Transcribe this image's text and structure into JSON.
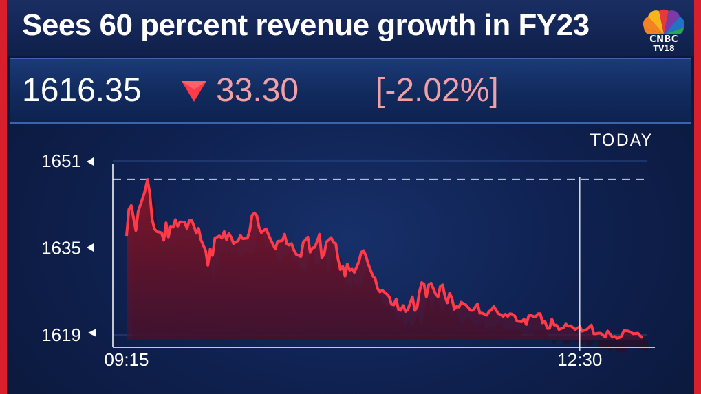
{
  "headline": "Sees 60 percent revenue growth in FY23",
  "logo": {
    "brand": "CNBC",
    "sub": "TV18",
    "icon": "peacock-icon"
  },
  "quote": {
    "price": "1616.35",
    "change": "33.30",
    "percent": "[-2.02%]",
    "direction_icon": "down-triangle-icon"
  },
  "period_label": "TODAY",
  "colors": {
    "accent_red": "#d8202c",
    "line": "#ff3b4a",
    "change_text": "#f2a0a6",
    "background": "#0f2150"
  },
  "chart_data": {
    "type": "area",
    "title": "",
    "xlabel": "",
    "ylabel": "",
    "ylim": [
      1618,
      1651
    ],
    "y_ticks": [
      1651,
      1635,
      1619
    ],
    "x_ticks": [
      {
        "label": "09:15",
        "minutes": 0
      },
      {
        "label": "12:30",
        "minutes": 195
      }
    ],
    "x_range_minutes": [
      0,
      222
    ],
    "reference_line": 1647.6,
    "cursor_minutes": 195,
    "grid": "horizontal",
    "series": [
      {
        "values": [
          [
            0,
            1637.2
          ],
          [
            1,
            1642.1
          ],
          [
            2,
            1642.8
          ],
          [
            3,
            1640.5
          ],
          [
            4,
            1638.2
          ],
          [
            5,
            1641.7
          ],
          [
            6,
            1643.0
          ],
          [
            7,
            1644.2
          ],
          [
            8,
            1645.6
          ],
          [
            9,
            1647.6
          ],
          [
            10,
            1645.0
          ],
          [
            11,
            1640.2
          ],
          [
            12,
            1638.5
          ],
          [
            13,
            1638.0
          ],
          [
            15,
            1637.8
          ],
          [
            16,
            1636.4
          ],
          [
            17,
            1639.6
          ],
          [
            18,
            1637.0
          ],
          [
            19,
            1639.0
          ],
          [
            20,
            1638.8
          ],
          [
            21,
            1640.2
          ],
          [
            22,
            1639.0
          ],
          [
            23,
            1639.8
          ],
          [
            25,
            1639.7
          ],
          [
            26,
            1638.6
          ],
          [
            27,
            1640.0
          ],
          [
            28,
            1640.1
          ],
          [
            29,
            1639.0
          ],
          [
            30,
            1637.7
          ],
          [
            31,
            1638.6
          ],
          [
            32,
            1636.5
          ],
          [
            34,
            1634.5
          ],
          [
            35,
            1631.8
          ],
          [
            36,
            1634.8
          ],
          [
            37,
            1633.6
          ],
          [
            38,
            1636.8
          ],
          [
            39,
            1637.0
          ],
          [
            40,
            1637.2
          ],
          [
            41,
            1636.8
          ],
          [
            42,
            1638.0
          ],
          [
            43,
            1636.5
          ],
          [
            44,
            1637.6
          ],
          [
            45,
            1637.0
          ],
          [
            46,
            1635.8
          ],
          [
            48,
            1636.3
          ],
          [
            49,
            1637.3
          ],
          [
            50,
            1636.7
          ],
          [
            52,
            1636.8
          ],
          [
            53,
            1638.2
          ],
          [
            54,
            1641.0
          ],
          [
            55,
            1641.4
          ],
          [
            56,
            1641.0
          ],
          [
            57,
            1638.8
          ],
          [
            58,
            1637.8
          ],
          [
            59,
            1638.2
          ],
          [
            60,
            1638.5
          ],
          [
            62,
            1636.5
          ],
          [
            64,
            1634.8
          ],
          [
            65,
            1636.2
          ],
          [
            67,
            1636.3
          ],
          [
            68,
            1637.5
          ],
          [
            69,
            1635.7
          ],
          [
            70,
            1635.5
          ],
          [
            71,
            1635.8
          ],
          [
            72,
            1634.6
          ],
          [
            73,
            1633.8
          ],
          [
            75,
            1633.4
          ],
          [
            76,
            1636.0
          ],
          [
            78,
            1637.0
          ],
          [
            79,
            1634.2
          ],
          [
            80,
            1635.0
          ],
          [
            81,
            1635.1
          ],
          [
            82,
            1636.2
          ],
          [
            83,
            1637.5
          ],
          [
            84,
            1633.2
          ],
          [
            85,
            1633.8
          ],
          [
            86,
            1636.1
          ],
          [
            88,
            1636.9
          ],
          [
            89,
            1636.0
          ],
          [
            90,
            1635.8
          ],
          [
            91,
            1633.0
          ],
          [
            92,
            1631.0
          ],
          [
            93,
            1631.6
          ],
          [
            94,
            1629.8
          ],
          [
            95,
            1632.0
          ],
          [
            96,
            1630.9
          ],
          [
            97,
            1631.1
          ],
          [
            98,
            1630.5
          ],
          [
            99,
            1631.5
          ],
          [
            100,
            1632.5
          ],
          [
            101,
            1634.2
          ],
          [
            102,
            1634.5
          ],
          [
            103,
            1633.5
          ],
          [
            104,
            1632.0
          ],
          [
            105,
            1630.9
          ],
          [
            106,
            1629.8
          ],
          [
            107,
            1629.3
          ],
          [
            108,
            1627.5
          ],
          [
            109,
            1626.9
          ],
          [
            110,
            1627.2
          ],
          [
            112,
            1626.5
          ],
          [
            113,
            1626.0
          ],
          [
            114,
            1624.6
          ],
          [
            115,
            1624.5
          ],
          [
            116,
            1625.6
          ],
          [
            117,
            1623.6
          ],
          [
            118,
            1623.5
          ],
          [
            119,
            1624.4
          ],
          [
            120,
            1623.3
          ],
          [
            121,
            1623.6
          ],
          [
            122,
            1624.8
          ],
          [
            123,
            1626.0
          ],
          [
            124,
            1623.5
          ],
          [
            125,
            1624.0
          ],
          [
            126,
            1626.9
          ],
          [
            127,
            1628.6
          ],
          [
            128,
            1628.3
          ],
          [
            129,
            1626.0
          ],
          [
            130,
            1628.2
          ],
          [
            131,
            1628.5
          ],
          [
            132,
            1627.5
          ],
          [
            133,
            1626.5
          ],
          [
            134,
            1626.0
          ],
          [
            135,
            1627.9
          ],
          [
            136,
            1628.2
          ],
          [
            137,
            1626.1
          ],
          [
            138,
            1624.9
          ],
          [
            139,
            1626.7
          ],
          [
            140,
            1625.7
          ],
          [
            141,
            1623.7
          ],
          [
            142,
            1624.2
          ],
          [
            143,
            1624.1
          ],
          [
            144,
            1625.0
          ],
          [
            146,
            1624.5
          ],
          [
            147,
            1624.0
          ],
          [
            148,
            1623.5
          ],
          [
            149,
            1623.5
          ],
          [
            151,
            1624.7
          ],
          [
            152,
            1623.0
          ],
          [
            153,
            1623.0
          ],
          [
            155,
            1622.6
          ],
          [
            156,
            1623.3
          ],
          [
            157,
            1623.6
          ],
          [
            158,
            1624.2
          ],
          [
            160,
            1622.9
          ],
          [
            161,
            1622.7
          ],
          [
            162,
            1622.4
          ],
          [
            163,
            1622.8
          ],
          [
            164,
            1622.4
          ],
          [
            165,
            1622.9
          ],
          [
            166,
            1622.8
          ],
          [
            167,
            1622.5
          ],
          [
            168,
            1621.5
          ],
          [
            170,
            1621.4
          ],
          [
            171,
            1621.9
          ],
          [
            172,
            1620.9
          ],
          [
            173,
            1622.5
          ],
          [
            174,
            1622.6
          ],
          [
            175,
            1622.4
          ],
          [
            176,
            1622.3
          ],
          [
            177,
            1622.9
          ],
          [
            178,
            1622.9
          ],
          [
            179,
            1621.2
          ],
          [
            180,
            1621.5
          ],
          [
            181,
            1620.2
          ],
          [
            182,
            1620.2
          ],
          [
            183,
            1621.9
          ],
          [
            184,
            1620.8
          ],
          [
            185,
            1620.8
          ],
          [
            186,
            1620.0
          ],
          [
            188,
            1620.3
          ],
          [
            189,
            1621.0
          ],
          [
            190,
            1620.6
          ],
          [
            191,
            1620.7
          ],
          [
            193,
            1620.0
          ],
          [
            195,
            1620.5
          ],
          [
            196,
            1619.7
          ],
          [
            198,
            1620.0
          ],
          [
            200,
            1620.8
          ],
          [
            201,
            1619.2
          ],
          [
            202,
            1619.2
          ],
          [
            203,
            1619.3
          ],
          [
            204,
            1619.3
          ],
          [
            206,
            1618.6
          ],
          [
            207,
            1619.7
          ],
          [
            209,
            1618.6
          ],
          [
            210,
            1618.7
          ],
          [
            211,
            1618.4
          ],
          [
            212,
            1618.5
          ],
          [
            213,
            1618.8
          ],
          [
            214,
            1619.8
          ],
          [
            216,
            1619.7
          ],
          [
            218,
            1619.2
          ],
          [
            220,
            1619.3
          ],
          [
            221,
            1618.8
          ],
          [
            222,
            1618.5
          ]
        ]
      }
    ]
  }
}
